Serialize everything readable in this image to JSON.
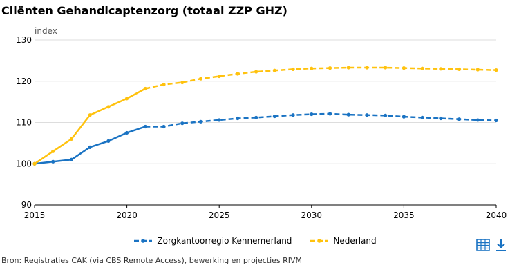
{
  "title": "Cliënten Gehandicaptenzorg (totaal ZZP GHZ)",
  "source": "Bron: Registraties CAK (via CBS Remote Access), bewerking en projecties RIVM",
  "icons": {
    "table": "table-icon",
    "download": "download-icon"
  },
  "colors": {
    "blue": "#1a73c3",
    "yellow": "#ffc20e",
    "grid": "#dddddd",
    "axis": "#000000"
  },
  "chart_data": {
    "type": "line",
    "ylabel": "index",
    "xlim": [
      2015,
      2040
    ],
    "ylim": [
      90,
      130
    ],
    "x_ticks": [
      "2015",
      "2020",
      "2025",
      "2030",
      "2035",
      "2040"
    ],
    "y_ticks": [
      "90",
      "100",
      "110",
      "120",
      "130"
    ],
    "legend_placement": "bottom-center",
    "grid": true,
    "series": [
      {
        "name": "Zorgkantoorregio Kennemerland",
        "color": "#1a73c3",
        "x": [
          2015,
          2016,
          2017,
          2018,
          2019,
          2020,
          2021,
          2022,
          2023,
          2024,
          2025,
          2026,
          2027,
          2028,
          2029,
          2030,
          2031,
          2032,
          2033,
          2034,
          2035,
          2036,
          2037,
          2038,
          2039,
          2040
        ],
        "y": [
          100.0,
          100.5,
          101.0,
          104.0,
          105.5,
          107.5,
          109.0,
          109.0,
          109.8,
          110.2,
          110.6,
          111.0,
          111.2,
          111.5,
          111.8,
          112.0,
          112.1,
          111.9,
          111.8,
          111.7,
          111.4,
          111.2,
          111.0,
          110.8,
          110.6,
          110.5
        ],
        "projection_from": 2021
      },
      {
        "name": "Nederland",
        "color": "#ffc20e",
        "x": [
          2015,
          2016,
          2017,
          2018,
          2019,
          2020,
          2021,
          2022,
          2023,
          2024,
          2025,
          2026,
          2027,
          2028,
          2029,
          2030,
          2031,
          2032,
          2033,
          2034,
          2035,
          2036,
          2037,
          2038,
          2039,
          2040
        ],
        "y": [
          100.0,
          103.0,
          106.0,
          111.8,
          113.8,
          115.8,
          118.2,
          119.2,
          119.7,
          120.6,
          121.2,
          121.8,
          122.3,
          122.6,
          122.9,
          123.1,
          123.2,
          123.3,
          123.3,
          123.3,
          123.2,
          123.1,
          123.0,
          122.9,
          122.8,
          122.7
        ],
        "projection_from": 2021
      }
    ]
  }
}
